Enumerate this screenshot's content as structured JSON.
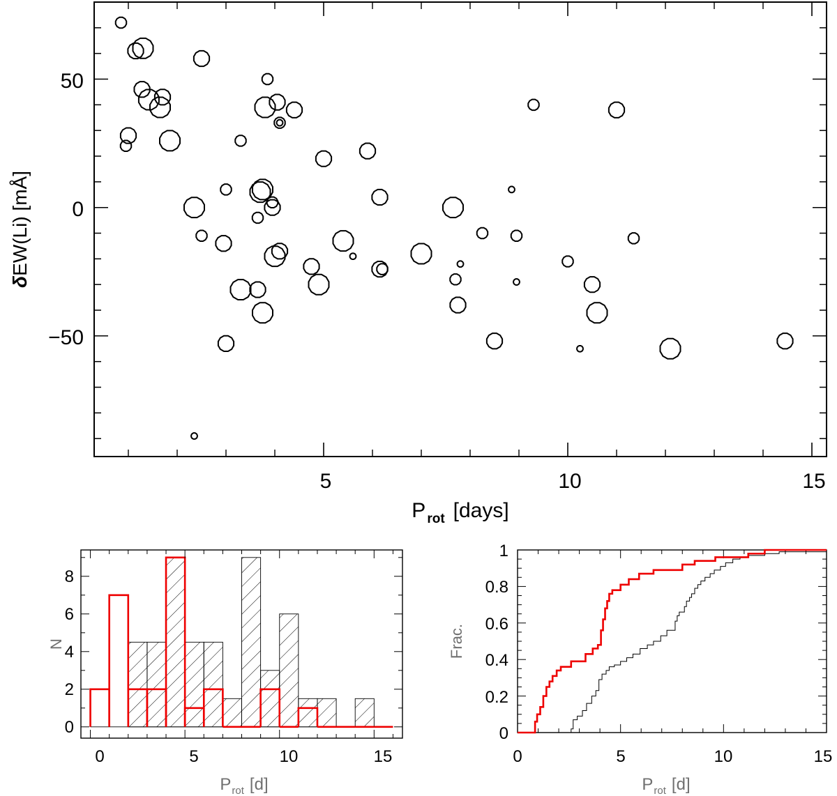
{
  "chart_data": [
    {
      "type": "scatter",
      "xlabel": "P",
      "xlabel_sub": "rot",
      "xlabel_units": "[days]",
      "ylabel_prefix": "δ",
      "ylabel": "EW(Li)  [mÅ]",
      "xlim": [
        0.3,
        15.3
      ],
      "ylim": [
        -97,
        80
      ],
      "xticks": [
        5,
        10,
        15
      ],
      "yticks": [
        -50,
        0,
        50
      ],
      "xtick_labels": [
        "5",
        "10",
        "15"
      ],
      "ytick_labels": [
        "−50",
        "0",
        "50"
      ],
      "marker_size_note": "circle size varies per star (small / medium / large)",
      "points": [
        {
          "x": 0.85,
          "y": 72,
          "s": 1
        },
        {
          "x": 1.15,
          "y": 61,
          "s": 2
        },
        {
          "x": 1.3,
          "y": 62,
          "s": 3
        },
        {
          "x": 1.28,
          "y": 46,
          "s": 2
        },
        {
          "x": 1.42,
          "y": 42,
          "s": 3
        },
        {
          "x": 1.7,
          "y": 43,
          "s": 2
        },
        {
          "x": 1.65,
          "y": 39,
          "s": 3
        },
        {
          "x": 1.0,
          "y": 28,
          "s": 2
        },
        {
          "x": 0.95,
          "y": 24,
          "s": 1
        },
        {
          "x": 1.85,
          "y": 26,
          "s": 3
        },
        {
          "x": 2.5,
          "y": 58,
          "s": 2
        },
        {
          "x": 2.35,
          "y": 0,
          "s": 3
        },
        {
          "x": 2.5,
          "y": -11,
          "s": 1
        },
        {
          "x": 2.35,
          "y": -89,
          "s": 0
        },
        {
          "x": 3.3,
          "y": 26,
          "s": 1
        },
        {
          "x": 3.0,
          "y": 7,
          "s": 1
        },
        {
          "x": 2.95,
          "y": -14,
          "s": 2
        },
        {
          "x": 3.3,
          "y": -32,
          "s": 3
        },
        {
          "x": 3.0,
          "y": -53,
          "s": 2
        },
        {
          "x": 3.85,
          "y": 50,
          "s": 1
        },
        {
          "x": 3.8,
          "y": 39,
          "s": 3
        },
        {
          "x": 4.05,
          "y": 41,
          "s": 2
        },
        {
          "x": 4.1,
          "y": 33,
          "s": 1
        },
        {
          "x": 4.4,
          "y": 38,
          "s": 2
        },
        {
          "x": 3.75,
          "y": 7,
          "s": 3
        },
        {
          "x": 3.7,
          "y": 6,
          "s": 3
        },
        {
          "x": 3.65,
          "y": -4,
          "s": 1
        },
        {
          "x": 3.95,
          "y": 0,
          "s": 2
        },
        {
          "x": 3.95,
          "y": 2,
          "s": 1
        },
        {
          "x": 4.1,
          "y": -17,
          "s": 2
        },
        {
          "x": 4.0,
          "y": -19,
          "s": 3
        },
        {
          "x": 3.65,
          "y": -32,
          "s": 2
        },
        {
          "x": 3.75,
          "y": -41,
          "s": 3
        },
        {
          "x": 4.1,
          "y": 33,
          "s": 0
        },
        {
          "x": 5.0,
          "y": 19,
          "s": 2
        },
        {
          "x": 4.75,
          "y": -23,
          "s": 2
        },
        {
          "x": 4.9,
          "y": -30,
          "s": 3
        },
        {
          "x": 5.4,
          "y": -13,
          "s": 3
        },
        {
          "x": 5.6,
          "y": -19,
          "s": 0
        },
        {
          "x": 5.9,
          "y": 22,
          "s": 2
        },
        {
          "x": 6.15,
          "y": 4,
          "s": 2
        },
        {
          "x": 6.15,
          "y": -24,
          "s": 2
        },
        {
          "x": 6.2,
          "y": -24,
          "s": 1
        },
        {
          "x": 7.0,
          "y": -18,
          "s": 3
        },
        {
          "x": 7.65,
          "y": 0,
          "s": 3
        },
        {
          "x": 7.8,
          "y": -22,
          "s": 0
        },
        {
          "x": 7.7,
          "y": -28,
          "s": 1
        },
        {
          "x": 7.75,
          "y": -38,
          "s": 2
        },
        {
          "x": 8.25,
          "y": -10,
          "s": 1
        },
        {
          "x": 8.5,
          "y": -52,
          "s": 2
        },
        {
          "x": 8.85,
          "y": 7,
          "s": 0
        },
        {
          "x": 8.95,
          "y": -11,
          "s": 1
        },
        {
          "x": 8.95,
          "y": -29,
          "s": 0
        },
        {
          "x": 9.3,
          "y": 40,
          "s": 1
        },
        {
          "x": 10.0,
          "y": -21,
          "s": 1
        },
        {
          "x": 10.25,
          "y": -55,
          "s": 0
        },
        {
          "x": 10.5,
          "y": -30,
          "s": 2
        },
        {
          "x": 10.6,
          "y": -41,
          "s": 3
        },
        {
          "x": 11.0,
          "y": 38,
          "s": 2
        },
        {
          "x": 11.35,
          "y": -12,
          "s": 1
        },
        {
          "x": 12.1,
          "y": -55,
          "s": 3
        },
        {
          "x": 14.45,
          "y": -52,
          "s": 2
        }
      ]
    },
    {
      "type": "bar",
      "ylabel": "N",
      "xlabel": "P",
      "xlabel_sub": "rot",
      "xlabel_units": "[d]",
      "xlim": [
        -0.5,
        16.5
      ],
      "ylim": [
        -0.6,
        9.4
      ],
      "xticks": [
        0,
        5,
        10,
        15
      ],
      "yticks": [
        0,
        2,
        4,
        6,
        8
      ],
      "xtick_labels": [
        "0",
        "5",
        "10",
        "15"
      ],
      "ytick_labels": [
        "0",
        "2",
        "4",
        "6",
        "8"
      ],
      "bin_edges": [
        0,
        1,
        2,
        3,
        4,
        5,
        6,
        7,
        8,
        9,
        10,
        11,
        12,
        13,
        14,
        15,
        16
      ],
      "series": [
        {
          "name": "hatched sample",
          "style": "hatched",
          "color": "#000000",
          "values": [
            0,
            0,
            4.5,
            4.5,
            9,
            4.5,
            4.5,
            1.5,
            9,
            3,
            6,
            1.5,
            1.5,
            0,
            1.5,
            0
          ]
        },
        {
          "name": "red sample",
          "style": "step",
          "color": "#ee0000",
          "values": [
            2,
            7,
            2,
            2,
            9,
            1,
            2,
            0,
            0,
            2,
            0,
            1,
            0,
            0,
            0,
            0
          ]
        }
      ]
    },
    {
      "type": "line",
      "ylabel": "Frac.",
      "xlabel": "P",
      "xlabel_sub": "rot",
      "xlabel_units": "[d]",
      "xlim": [
        0,
        15
      ],
      "ylim": [
        0,
        1
      ],
      "xticks": [
        0,
        5,
        10,
        15
      ],
      "yticks": [
        0,
        0.2,
        0.4,
        0.6,
        0.8,
        1
      ],
      "xtick_labels": [
        "0",
        "5",
        "10",
        "15"
      ],
      "ytick_labels": [
        "0",
        "0.2",
        "0.4",
        "0.6",
        "0.8",
        "1"
      ],
      "series": [
        {
          "name": "red cumulative",
          "color": "#ee0000",
          "x": [
            0,
            0.85,
            0.95,
            1.1,
            1.25,
            1.4,
            1.55,
            1.7,
            1.9,
            2.1,
            2.6,
            2.85,
            3.3,
            3.65,
            3.9,
            4.05,
            4.15,
            4.25,
            4.35,
            4.45,
            4.6,
            5.0,
            5.4,
            5.9,
            6.6,
            8.0,
            8.6,
            9.6,
            11.2,
            12.0,
            15.0
          ],
          "y": [
            0,
            0.06,
            0.1,
            0.14,
            0.2,
            0.25,
            0.28,
            0.31,
            0.34,
            0.36,
            0.39,
            0.39,
            0.43,
            0.46,
            0.48,
            0.56,
            0.62,
            0.68,
            0.72,
            0.76,
            0.78,
            0.81,
            0.84,
            0.87,
            0.89,
            0.92,
            0.94,
            0.96,
            0.98,
            1.0,
            1.0
          ]
        },
        {
          "name": "black cumulative",
          "color": "#000000",
          "x": [
            0,
            2.6,
            2.7,
            2.9,
            3.15,
            3.35,
            3.6,
            3.8,
            3.95,
            4.1,
            4.3,
            4.45,
            4.7,
            5.0,
            5.3,
            5.6,
            5.95,
            6.3,
            6.6,
            6.95,
            7.25,
            7.55,
            7.65,
            7.75,
            7.85,
            8.1,
            8.2,
            8.35,
            8.45,
            8.6,
            8.75,
            8.9,
            9.1,
            9.35,
            9.55,
            9.85,
            10.1,
            10.45,
            10.8,
            11.2,
            12.0,
            12.7,
            15.0
          ],
          "y": [
            0,
            0.02,
            0.07,
            0.09,
            0.12,
            0.16,
            0.2,
            0.23,
            0.29,
            0.32,
            0.34,
            0.36,
            0.37,
            0.39,
            0.41,
            0.43,
            0.46,
            0.48,
            0.5,
            0.53,
            0.56,
            0.56,
            0.61,
            0.64,
            0.66,
            0.69,
            0.72,
            0.74,
            0.76,
            0.79,
            0.81,
            0.83,
            0.85,
            0.87,
            0.89,
            0.91,
            0.93,
            0.95,
            0.96,
            0.97,
            0.98,
            0.99,
            1.0
          ]
        }
      ]
    }
  ]
}
